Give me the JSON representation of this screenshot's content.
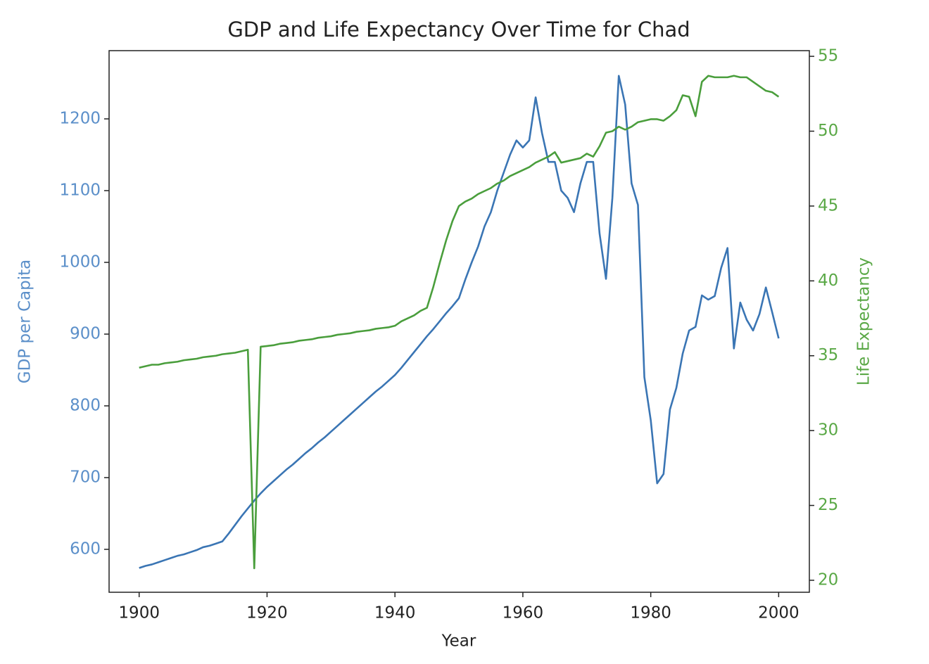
{
  "chart_data": {
    "type": "line",
    "title": "GDP and Life Expectancy Over Time for Chad",
    "xlabel": "Year",
    "ylabel": "GDP per Capita",
    "y2label": "Life Expectancy",
    "x": [
      1900,
      1901,
      1902,
      1903,
      1904,
      1905,
      1906,
      1907,
      1908,
      1909,
      1910,
      1911,
      1912,
      1913,
      1914,
      1915,
      1916,
      1917,
      1918,
      1919,
      1920,
      1921,
      1922,
      1923,
      1924,
      1925,
      1926,
      1927,
      1928,
      1929,
      1930,
      1931,
      1932,
      1933,
      1934,
      1935,
      1936,
      1937,
      1938,
      1939,
      1940,
      1941,
      1942,
      1943,
      1944,
      1945,
      1946,
      1947,
      1948,
      1949,
      1950,
      1951,
      1952,
      1953,
      1954,
      1955,
      1956,
      1957,
      1958,
      1959,
      1960,
      1961,
      1962,
      1963,
      1964,
      1965,
      1966,
      1967,
      1968,
      1969,
      1970,
      1971,
      1972,
      1973,
      1974,
      1975,
      1976,
      1977,
      1978,
      1979,
      1980,
      1981,
      1982,
      1983,
      1984,
      1985,
      1986,
      1987,
      1988,
      1989,
      1990,
      1991,
      1992,
      1993,
      1994,
      1995,
      1996,
      1997,
      1998,
      1999,
      2000
    ],
    "series": [
      {
        "name": "GDP per Capita",
        "color": "#3a75b4",
        "axis": "y",
        "values": [
          574,
          577,
          579,
          582,
          585,
          588,
          591,
          593,
          596,
          599,
          603,
          605,
          608,
          611,
          622,
          634,
          646,
          657,
          668,
          678,
          687,
          695,
          703,
          711,
          718,
          726,
          734,
          741,
          749,
          756,
          764,
          772,
          780,
          788,
          796,
          804,
          812,
          820,
          827,
          835,
          843,
          853,
          864,
          875,
          886,
          897,
          907,
          918,
          929,
          939,
          950,
          976,
          1000,
          1022,
          1050,
          1070,
          1100,
          1125,
          1150,
          1170,
          1160,
          1170,
          1230,
          1180,
          1140,
          1140,
          1100,
          1090,
          1070,
          1110,
          1140,
          1140,
          1040,
          977,
          1090,
          1260,
          1220,
          1110,
          1080,
          840,
          780,
          692,
          705,
          795,
          825,
          873,
          905,
          910,
          954,
          948,
          953,
          992,
          1020,
          880,
          944,
          920,
          905,
          928,
          965,
          930,
          894
        ]
      },
      {
        "name": "Life Expectancy",
        "color": "#4a9e3c",
        "axis": "y2",
        "values": [
          34.2,
          34.3,
          34.4,
          34.4,
          34.5,
          34.55,
          34.6,
          34.7,
          34.75,
          34.8,
          34.9,
          34.95,
          35.0,
          35.1,
          35.15,
          35.2,
          35.3,
          35.4,
          20.8,
          35.6,
          35.65,
          35.7,
          35.8,
          35.85,
          35.9,
          36.0,
          36.05,
          36.1,
          36.2,
          36.25,
          36.3,
          36.4,
          36.45,
          36.5,
          36.6,
          36.65,
          36.7,
          36.8,
          36.85,
          36.9,
          37.0,
          37.3,
          37.5,
          37.7,
          38.0,
          38.2,
          39.6,
          41.2,
          42.7,
          44.0,
          45.0,
          45.3,
          45.5,
          45.8,
          46.0,
          46.2,
          46.5,
          46.7,
          47.0,
          47.2,
          47.4,
          47.6,
          47.9,
          48.1,
          48.3,
          48.6,
          47.9,
          48.0,
          48.1,
          48.2,
          48.5,
          48.3,
          49.0,
          49.9,
          50.0,
          50.3,
          50.1,
          50.3,
          50.6,
          50.7,
          50.8,
          50.8,
          50.7,
          51.0,
          51.4,
          52.4,
          52.3,
          51.0,
          53.3,
          53.7,
          53.6,
          53.6,
          53.6,
          53.7,
          53.6,
          53.6,
          53.3,
          53.0,
          52.7,
          52.6,
          52.3
        ]
      }
    ],
    "xlim": [
      1895.3,
      2004.8
    ],
    "xticks": [
      1900,
      1920,
      1940,
      1960,
      1980,
      2000
    ],
    "ylim": [
      540.2,
      1295.1
    ],
    "yticks": [
      600,
      700,
      800,
      900,
      1000,
      1100,
      1200
    ],
    "y2lim": [
      19.2,
      55.38
    ],
    "y2ticks": [
      20,
      25,
      30,
      35,
      40,
      45,
      50,
      55
    ],
    "ycolor": "#5b8fc9",
    "y2color": "#5aa846",
    "grid": false
  }
}
